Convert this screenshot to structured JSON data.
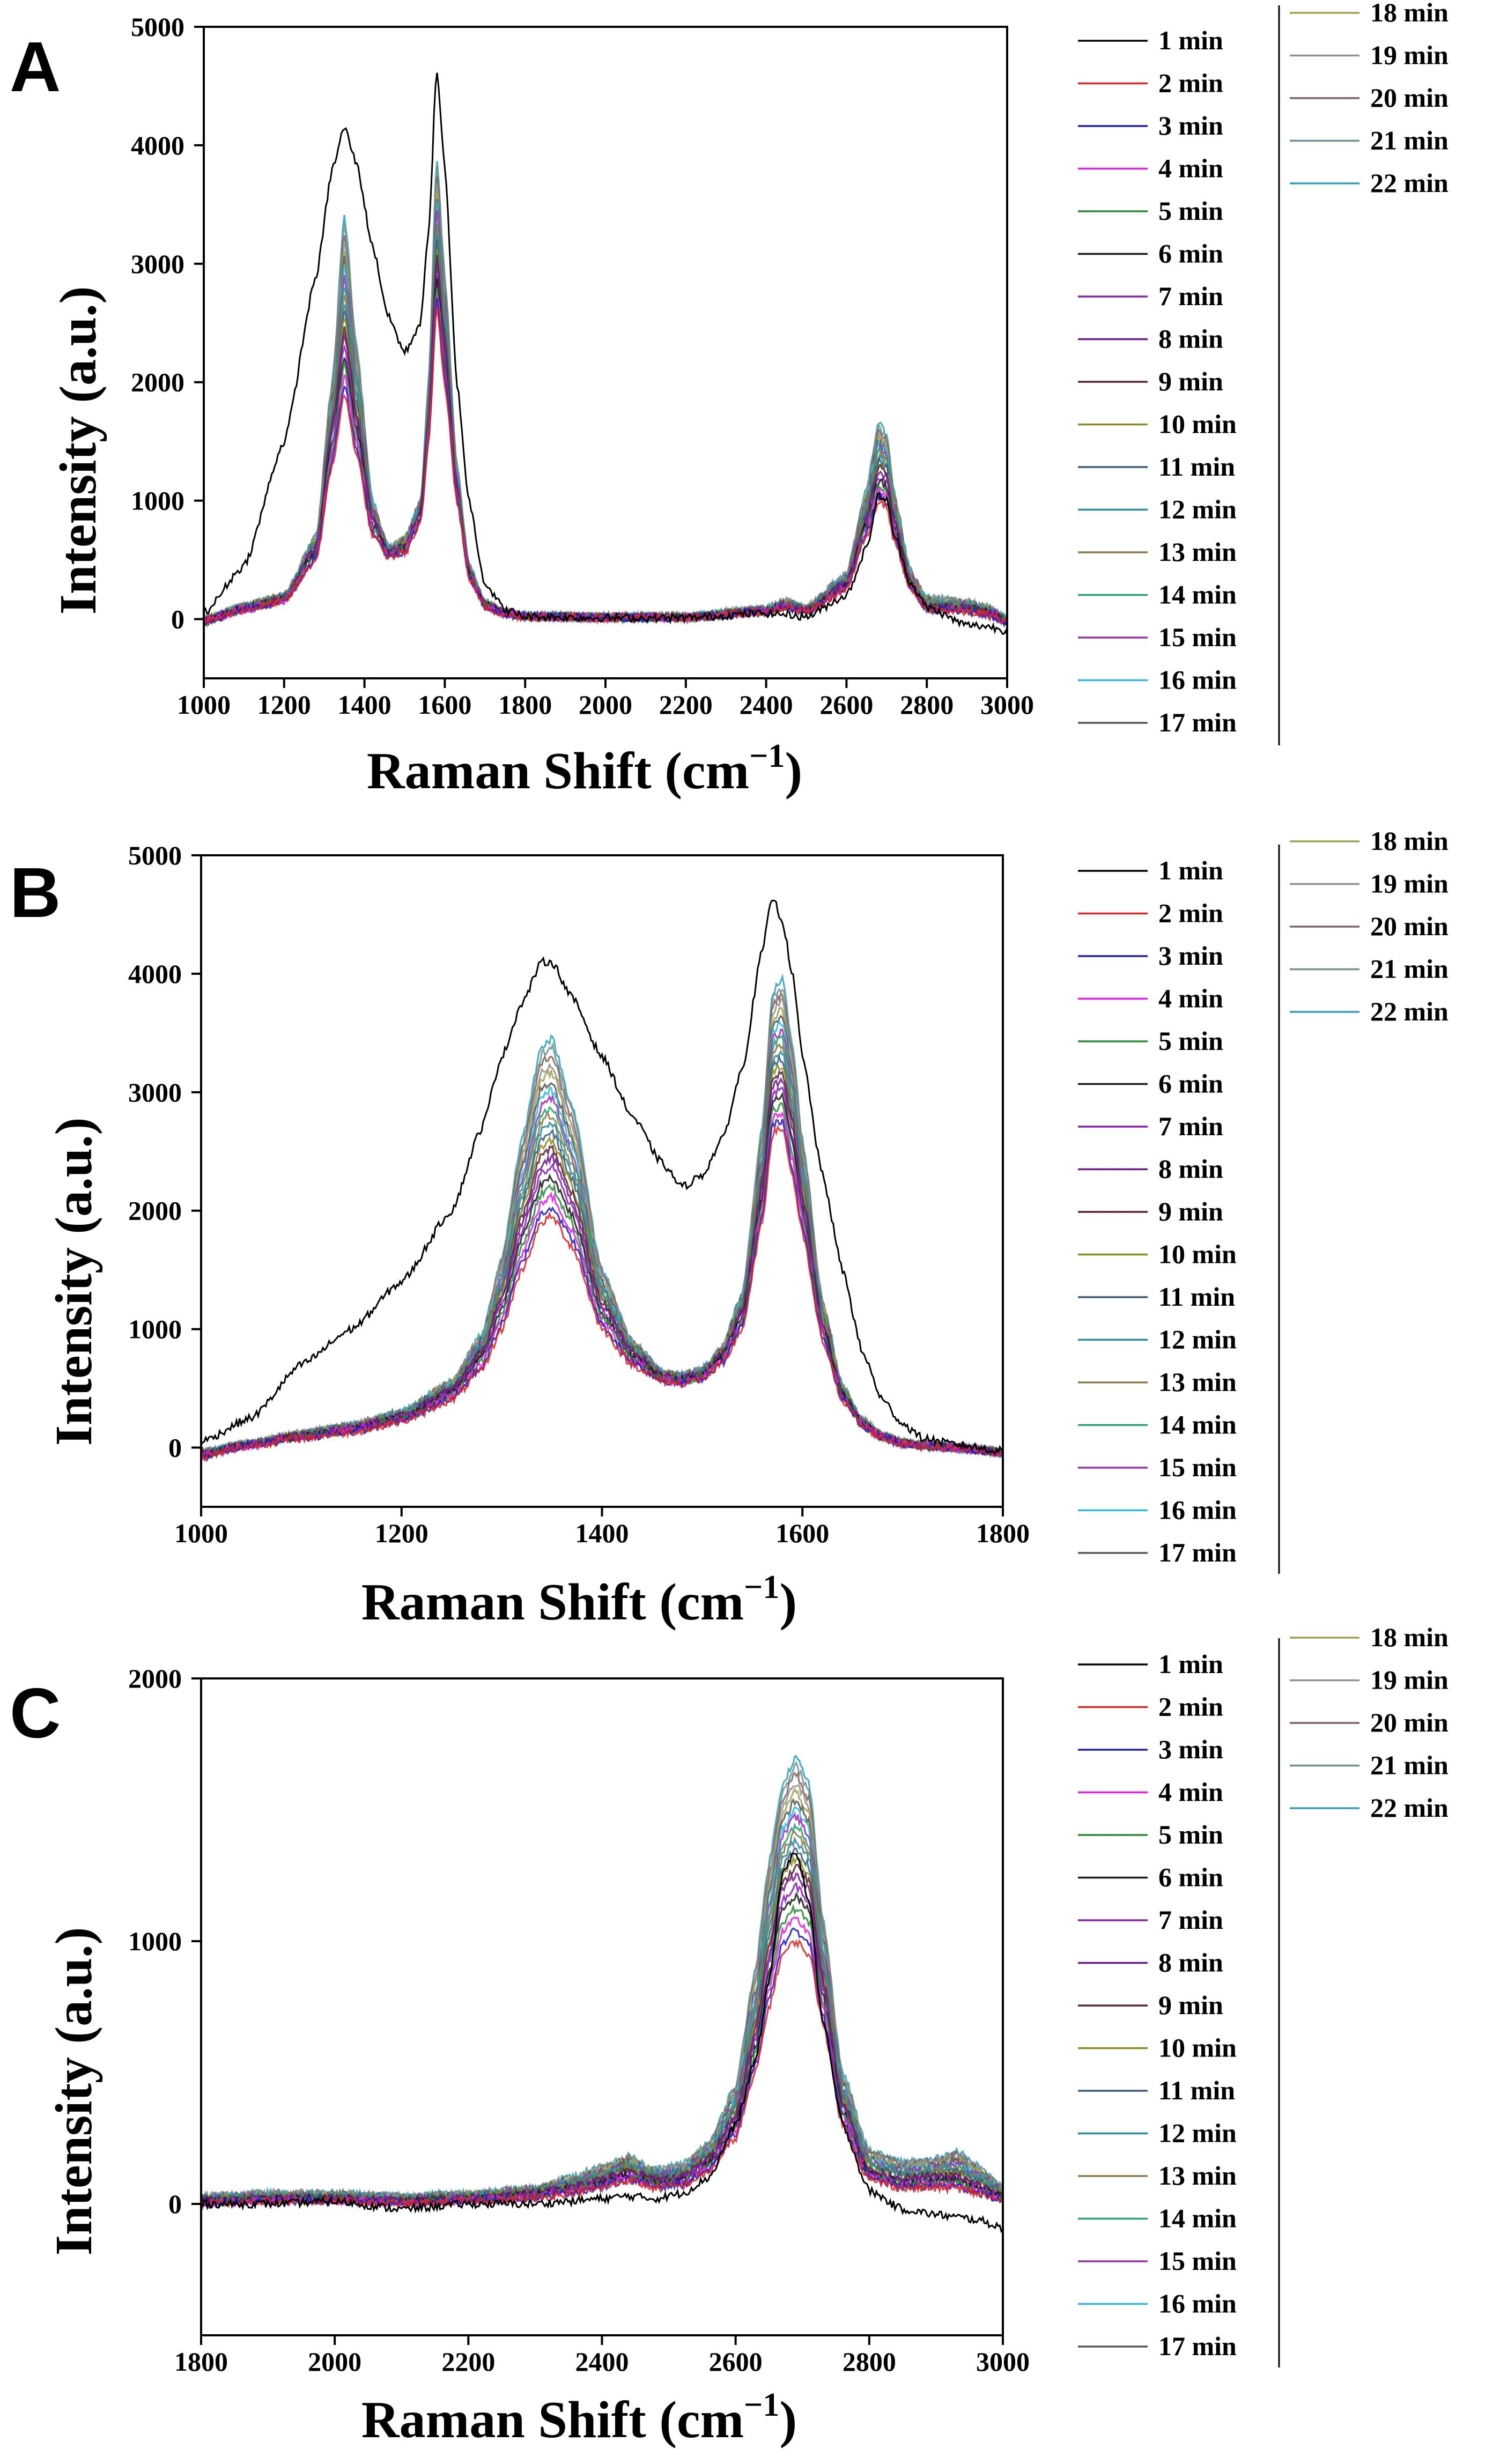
{
  "legend_labels": [
    "1 min",
    "2 min",
    "3 min",
    "4 min",
    "5 min",
    "6 min",
    "7 min",
    "8 min",
    "9 min",
    "10 min",
    "11 min",
    "12 min",
    "13 min",
    "14 min",
    "15 min",
    "16 min",
    "17 min",
    "18 min",
    "19 min",
    "20 min",
    "21 min",
    "22 min"
  ],
  "series_colors": [
    "#000000",
    "#d62728",
    "#1f1fb4",
    "#e020e0",
    "#2a8a3a",
    "#1a1a1a",
    "#8a1fb4",
    "#6a1a8a",
    "#5a2030",
    "#8a8a20",
    "#3a5a7a",
    "#2a8aa0",
    "#8a7a4a",
    "#2aa070",
    "#9a30b0",
    "#30b8e0",
    "#555555",
    "#a0a050",
    "#909090",
    "#806060",
    "#709090",
    "#30a0b8"
  ],
  "chart_data": [
    {
      "panel": "A",
      "type": "line",
      "xlabel": "Raman Shift (cm",
      "xlabel_sup": "−1",
      "xlabel_close": ")",
      "ylabel": "Intensity (a.u.)",
      "xlim": [
        1000,
        3000
      ],
      "ylim": [
        -500,
        5000
      ],
      "xticks": [
        1000,
        1200,
        1400,
        1600,
        1800,
        2000,
        2200,
        2400,
        2600,
        2800,
        3000
      ],
      "yticks": [
        0,
        1000,
        2000,
        3000,
        4000,
        5000
      ],
      "x": [
        1000,
        1100,
        1200,
        1280,
        1320,
        1350,
        1380,
        1420,
        1460,
        1500,
        1540,
        1560,
        1580,
        1600,
        1630,
        1660,
        1700,
        1750,
        1800,
        2000,
        2200,
        2400,
        2450,
        2500,
        2600,
        2650,
        2680,
        2700,
        2720,
        2760,
        2800,
        2900,
        2950,
        3000
      ],
      "series": [
        {
          "name": "1 min",
          "values": [
            50,
            450,
            1500,
            2900,
            3800,
            4150,
            3850,
            3150,
            2550,
            2250,
            2500,
            3300,
            4650,
            3800,
            2000,
            1000,
            300,
            80,
            20,
            10,
            10,
            50,
            40,
            20,
            200,
            600,
            1050,
            1000,
            700,
            300,
            100,
            -50,
            -60,
            -100
          ]
        },
        {
          "name": "2 min",
          "values": [
            -30,
            80,
            150,
            500,
            1300,
            1900,
            1400,
            700,
            520,
            560,
            800,
            1500,
            2650,
            2000,
            1000,
            350,
            100,
            40,
            20,
            10,
            10,
            60,
            100,
            60,
            250,
            700,
            1000,
            950,
            650,
            250,
            80,
            60,
            40,
            -30
          ]
        },
        {
          "name": "8 min",
          "values": [
            -20,
            90,
            170,
            600,
            1600,
            2400,
            1700,
            850,
            560,
            620,
            900,
            1700,
            3000,
            2300,
            1100,
            400,
            120,
            50,
            25,
            15,
            15,
            70,
            110,
            70,
            300,
            850,
            1250,
            1200,
            800,
            300,
            100,
            90,
            60,
            -20
          ]
        },
        {
          "name": "16 min",
          "values": [
            0,
            110,
            200,
            700,
            2000,
            3400,
            2300,
            1000,
            600,
            680,
            1000,
            2000,
            3900,
            2900,
            1300,
            450,
            140,
            60,
            30,
            20,
            20,
            90,
            150,
            100,
            380,
            1100,
            1650,
            1550,
            1050,
            400,
            180,
            150,
            100,
            10
          ]
        }
      ]
    },
    {
      "panel": "B",
      "type": "line",
      "xlabel": "Raman Shift (cm",
      "xlabel_sup": "−1",
      "xlabel_close": ")",
      "ylabel": "Intensity (a.u.)",
      "xlim": [
        1000,
        1800
      ],
      "ylim": [
        -500,
        5000
      ],
      "xticks": [
        1000,
        1200,
        1400,
        1600,
        1800
      ],
      "yticks": [
        0,
        1000,
        2000,
        3000,
        4000,
        5000
      ],
      "x": [
        1000,
        1050,
        1100,
        1150,
        1200,
        1250,
        1280,
        1300,
        1320,
        1340,
        1350,
        1370,
        1400,
        1430,
        1460,
        1480,
        1500,
        1520,
        1540,
        1560,
        1570,
        1580,
        1590,
        1600,
        1620,
        1640,
        1660,
        1680,
        1700,
        1720,
        1750,
        1800
      ],
      "series": [
        {
          "name": "1 min",
          "values": [
            50,
            250,
            700,
            1000,
            1400,
            2000,
            2700,
            3300,
            3750,
            4100,
            4100,
            3800,
            3300,
            2800,
            2400,
            2200,
            2300,
            2600,
            3200,
            4200,
            4650,
            4450,
            4000,
            3300,
            2300,
            1500,
            800,
            400,
            200,
            80,
            30,
            -30
          ]
        },
        {
          "name": "2 min",
          "values": [
            -80,
            20,
            80,
            130,
            220,
            400,
            650,
            1000,
            1500,
            1900,
            1950,
            1700,
            1000,
            700,
            560,
            540,
            580,
            700,
            1000,
            1900,
            2650,
            2700,
            2300,
            1800,
            900,
            400,
            180,
            80,
            30,
            10,
            0,
            -50
          ]
        },
        {
          "name": "8 min",
          "values": [
            -60,
            30,
            100,
            160,
            260,
            480,
            800,
            1250,
            1900,
            2400,
            2450,
            2100,
            1200,
            800,
            600,
            580,
            620,
            780,
            1150,
            2200,
            3050,
            3100,
            2700,
            2100,
            1050,
            460,
            200,
            90,
            40,
            15,
            0,
            -40
          ]
        },
        {
          "name": "16 min",
          "values": [
            -40,
            40,
            120,
            190,
            300,
            560,
            950,
            1600,
            2600,
            3400,
            3450,
            2900,
            1500,
            900,
            640,
            610,
            660,
            850,
            1300,
            2700,
            3850,
            3950,
            3400,
            2600,
            1250,
            520,
            230,
            100,
            50,
            20,
            5,
            -30
          ]
        }
      ]
    },
    {
      "panel": "C",
      "type": "line",
      "xlabel": "Raman Shift (cm",
      "xlabel_sup": "−1",
      "xlabel_close": ")",
      "ylabel": "Intensity (a.u.)",
      "xlim": [
        1800,
        3000
      ],
      "ylim": [
        -500,
        2000
      ],
      "xticks": [
        1800,
        2000,
        2200,
        2400,
        2600,
        2800,
        3000
      ],
      "yticks": [
        0,
        1000,
        2000
      ],
      "x": [
        1800,
        1900,
        2000,
        2100,
        2200,
        2300,
        2350,
        2400,
        2440,
        2480,
        2520,
        2560,
        2600,
        2630,
        2650,
        2670,
        2690,
        2710,
        2730,
        2760,
        2800,
        2850,
        2900,
        2930,
        2960,
        3000
      ],
      "series": [
        {
          "name": "1 min",
          "values": [
            0,
            0,
            10,
            -20,
            0,
            0,
            10,
            20,
            30,
            20,
            40,
            100,
            300,
            550,
            850,
            1250,
            1350,
            1150,
            700,
            300,
            50,
            -20,
            -40,
            -50,
            -60,
            -90
          ]
        },
        {
          "name": "2 min",
          "values": [
            0,
            10,
            10,
            0,
            10,
            20,
            40,
            60,
            90,
            60,
            70,
            120,
            250,
            500,
            750,
            950,
            1000,
            950,
            700,
            300,
            90,
            60,
            60,
            60,
            40,
            10
          ]
        },
        {
          "name": "8 min",
          "values": [
            10,
            20,
            20,
            10,
            20,
            40,
            60,
            90,
            120,
            90,
            100,
            170,
            330,
            650,
            950,
            1200,
            1250,
            1200,
            850,
            380,
            120,
            90,
            100,
            100,
            70,
            30
          ]
        },
        {
          "name": "16 min",
          "values": [
            30,
            40,
            40,
            30,
            40,
            60,
            100,
            140,
            180,
            130,
            150,
            230,
            450,
            900,
            1300,
            1600,
            1700,
            1600,
            1100,
            500,
            200,
            160,
            170,
            200,
            150,
            60
          ]
        }
      ]
    }
  ],
  "panels": [
    {
      "letter": "A"
    },
    {
      "letter": "B"
    },
    {
      "letter": "C"
    }
  ]
}
